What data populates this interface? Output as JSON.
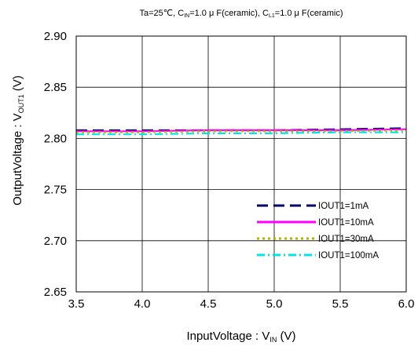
{
  "chart_data": {
    "type": "line",
    "title": {
      "parts": [
        {
          "text": "Ta=25℃, C",
          "sub": false
        },
        {
          "text": "IN",
          "sub": true
        },
        {
          "text": "=1.0 μ F(ceramic), C",
          "sub": false
        },
        {
          "text": "L1",
          "sub": true
        },
        {
          "text": "=1.0 μ F(ceramic)",
          "sub": false
        }
      ]
    },
    "xlabel": {
      "parts": [
        {
          "text": "InputVoltage : V",
          "sub": false
        },
        {
          "text": "IN",
          "sub": true
        },
        {
          "text": " (V)",
          "sub": false
        }
      ]
    },
    "ylabel": {
      "parts": [
        {
          "text": "OutputVoltage : V",
          "sub": false
        },
        {
          "text": "OUT1",
          "sub": true
        },
        {
          "text": " (V)",
          "sub": false
        }
      ]
    },
    "xlim": [
      3.5,
      6.0
    ],
    "ylim": [
      2.65,
      2.9
    ],
    "xticks": [
      "3.5",
      "4.0",
      "4.5",
      "5.0",
      "5.5",
      "6.0"
    ],
    "yticks": [
      "2.65",
      "2.70",
      "2.75",
      "2.80",
      "2.85",
      "2.90"
    ],
    "grid": true,
    "legend_position": "bottom-right",
    "series": [
      {
        "name": "IOUT1=1mA",
        "color": "#000066",
        "dash": "long-dash",
        "x": [
          3.5,
          4.0,
          4.5,
          5.0,
          5.5,
          6.0
        ],
        "y": [
          2.808,
          2.808,
          2.808,
          2.808,
          2.809,
          2.81
        ]
      },
      {
        "name": "IOUT1=10mA",
        "color": "#ff00ff",
        "dash": "solid",
        "x": [
          3.5,
          4.0,
          4.5,
          5.0,
          5.5,
          6.0
        ],
        "y": [
          2.807,
          2.807,
          2.808,
          2.808,
          2.808,
          2.809
        ]
      },
      {
        "name": "IOUT1=30mA",
        "color": "#b3b300",
        "dash": "dot",
        "x": [
          3.5,
          4.0,
          4.5,
          5.0,
          5.5,
          6.0
        ],
        "y": [
          2.806,
          2.806,
          2.807,
          2.807,
          2.807,
          2.808
        ]
      },
      {
        "name": "IOUT1=100mA",
        "color": "#00e5e5",
        "dash": "dash-dot",
        "x": [
          3.5,
          4.0,
          4.5,
          5.0,
          5.5,
          6.0
        ],
        "y": [
          2.804,
          2.804,
          2.805,
          2.805,
          2.806,
          2.806
        ]
      }
    ]
  }
}
